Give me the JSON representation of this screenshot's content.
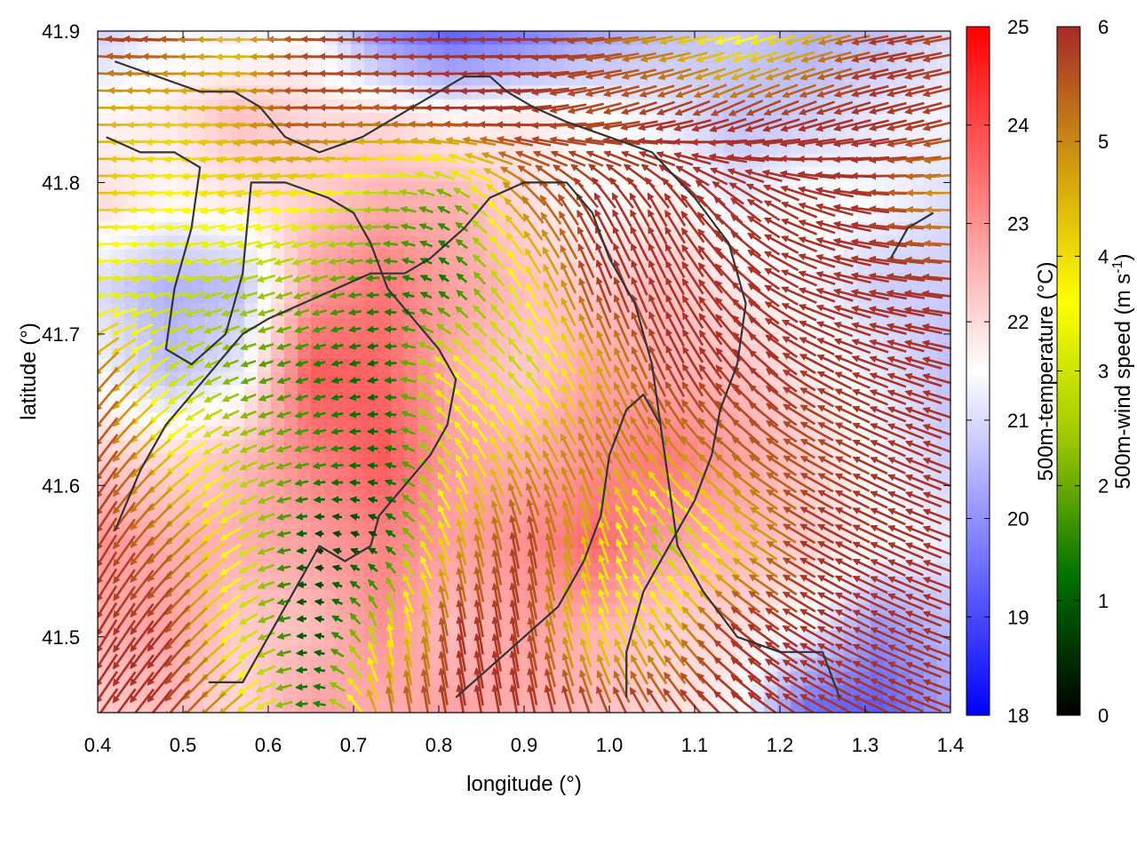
{
  "chart_data": {
    "type": "heatmap",
    "xlabel": "longitude (°)",
    "ylabel": "latitude (°)",
    "xlim": [
      0.4,
      1.4
    ],
    "ylim": [
      41.45,
      41.9
    ],
    "x_ticks": [
      "0.4",
      "0.5",
      "0.6",
      "0.7",
      "0.8",
      "0.9",
      "1.0",
      "1.1",
      "1.2",
      "1.3",
      "1.4"
    ],
    "y_ticks": [
      "41.5",
      "41.6",
      "41.7",
      "41.8",
      "41.9"
    ],
    "temperature_colorbar": {
      "label": "500m-temperature (°C)",
      "range": [
        18,
        25
      ],
      "ticks": [
        "18",
        "19",
        "20",
        "21",
        "22",
        "23",
        "24",
        "25"
      ],
      "colors": [
        "#0000ff",
        "#ffffff",
        "#ff0000"
      ]
    },
    "wind_colorbar": {
      "label": "500m-wind speed (m s",
      "label_sup": "-1",
      "label_end": ")",
      "range": [
        0,
        6
      ],
      "ticks": [
        "0",
        "1",
        "2",
        "3",
        "4",
        "5",
        "6"
      ],
      "colors": [
        "#000000",
        "#007000",
        "#9dc800",
        "#ffff00",
        "#d09a10",
        "#a52a2a"
      ]
    },
    "temperature_field": [
      [
        20.8,
        21.4,
        21.2,
        21.6,
        19.8,
        19.2,
        19.6,
        20.2,
        20.6,
        20.8,
        20.4,
        20.6,
        21.0
      ],
      [
        21.6,
        21.8,
        22.4,
        22.0,
        22.0,
        21.6,
        21.8,
        21.6,
        21.2,
        20.6,
        20.8,
        21.2,
        21.4
      ],
      [
        22.0,
        21.6,
        21.8,
        22.2,
        22.6,
        22.6,
        22.0,
        21.4,
        21.8,
        21.2,
        21.6,
        21.4,
        21.0
      ],
      [
        21.0,
        20.4,
        20.6,
        22.8,
        23.4,
        22.8,
        22.4,
        22.2,
        22.4,
        21.8,
        21.4,
        20.8,
        20.8
      ],
      [
        21.4,
        20.6,
        21.2,
        23.8,
        23.6,
        22.6,
        22.2,
        22.8,
        22.6,
        22.4,
        21.8,
        21.2,
        20.6
      ],
      [
        22.2,
        22.0,
        22.4,
        23.2,
        23.8,
        22.8,
        22.6,
        23.0,
        23.4,
        22.8,
        22.2,
        21.4,
        20.8
      ],
      [
        23.0,
        22.6,
        22.6,
        22.8,
        23.2,
        22.8,
        23.0,
        23.6,
        22.8,
        22.6,
        22.2,
        21.6,
        21.2
      ],
      [
        22.6,
        22.8,
        22.2,
        22.4,
        23.0,
        22.4,
        22.8,
        22.6,
        22.2,
        22.0,
        21.4,
        20.0,
        20.6
      ],
      [
        22.2,
        22.4,
        22.0,
        22.8,
        22.6,
        22.8,
        22.6,
        22.4,
        22.0,
        21.6,
        19.4,
        19.2,
        20.2
      ]
    ],
    "wind_field": [
      [
        5.9,
        5.8,
        4.2,
        5.6,
        5.9,
        5.9,
        5.9,
        5.7,
        4.6,
        3.2,
        4.4,
        5.9,
        5.6
      ],
      [
        4.6,
        4.2,
        4.6,
        5.8,
        5.4,
        5.9,
        5.9,
        5.6,
        5.9,
        5.9,
        5.9,
        5.9,
        5.8
      ],
      [
        4.4,
        3.6,
        4.0,
        3.6,
        2.4,
        1.6,
        5.2,
        5.9,
        5.9,
        5.9,
        5.9,
        5.9,
        4.6
      ],
      [
        3.2,
        3.0,
        2.6,
        2.2,
        1.4,
        1.2,
        3.6,
        5.9,
        5.9,
        5.9,
        5.9,
        5.9,
        5.9
      ],
      [
        5.4,
        3.0,
        2.0,
        1.4,
        1.0,
        3.8,
        2.6,
        4.4,
        5.9,
        5.9,
        5.9,
        5.9,
        5.9
      ],
      [
        5.8,
        4.2,
        2.6,
        1.8,
        1.0,
        3.2,
        4.6,
        5.2,
        4.8,
        5.4,
        5.6,
        5.9,
        5.9
      ],
      [
        5.9,
        5.2,
        3.4,
        0.6,
        0.8,
        4.4,
        5.9,
        4.2,
        2.0,
        4.0,
        5.9,
        5.9,
        5.9
      ],
      [
        5.9,
        5.9,
        3.2,
        0.6,
        2.8,
        5.9,
        5.8,
        3.6,
        4.4,
        5.9,
        5.9,
        5.9,
        5.9
      ],
      [
        5.9,
        5.9,
        4.6,
        1.0,
        5.4,
        5.9,
        5.9,
        5.9,
        5.9,
        5.9,
        5.9,
        5.9,
        5.9
      ]
    ],
    "wind_direction_deg": [
      [
        175,
        178,
        180,
        178,
        180,
        182,
        180,
        185,
        190,
        195,
        195,
        190,
        190
      ],
      [
        180,
        182,
        185,
        180,
        178,
        180,
        185,
        195,
        200,
        205,
        200,
        195,
        195
      ],
      [
        180,
        185,
        190,
        188,
        180,
        150,
        130,
        120,
        120,
        140,
        160,
        175,
        180
      ],
      [
        185,
        190,
        195,
        200,
        180,
        140,
        120,
        110,
        115,
        135,
        160,
        170,
        175
      ],
      [
        230,
        215,
        200,
        195,
        190,
        140,
        130,
        115,
        115,
        130,
        150,
        160,
        165
      ],
      [
        235,
        220,
        205,
        195,
        175,
        120,
        120,
        115,
        130,
        140,
        150,
        155,
        160
      ],
      [
        240,
        225,
        210,
        180,
        150,
        105,
        100,
        105,
        130,
        145,
        150,
        155,
        160
      ],
      [
        240,
        230,
        215,
        180,
        100,
        100,
        100,
        110,
        125,
        140,
        150,
        155,
        160
      ],
      [
        235,
        230,
        220,
        180,
        100,
        100,
        100,
        110,
        125,
        140,
        150,
        155,
        160
      ]
    ],
    "contour_lines": [
      [
        [
          0.42,
          41.88
        ],
        [
          0.47,
          41.87
        ],
        [
          0.52,
          41.86
        ],
        [
          0.56,
          41.86
        ],
        [
          0.59,
          41.85
        ],
        [
          0.62,
          41.83
        ],
        [
          0.66,
          41.82
        ],
        [
          0.71,
          41.83
        ],
        [
          0.74,
          41.84
        ],
        [
          0.77,
          41.85
        ],
        [
          0.8,
          41.86
        ],
        [
          0.83,
          41.87
        ],
        [
          0.86,
          41.87
        ],
        [
          0.88,
          41.86
        ],
        [
          0.91,
          41.85
        ],
        [
          0.95,
          41.84
        ],
        [
          1.0,
          41.83
        ],
        [
          1.05,
          41.82
        ],
        [
          1.1,
          41.79
        ],
        [
          1.14,
          41.76
        ],
        [
          1.16,
          41.72
        ],
        [
          1.15,
          41.68
        ],
        [
          1.13,
          41.65
        ],
        [
          1.12,
          41.62
        ],
        [
          1.1,
          41.59
        ],
        [
          1.07,
          41.56
        ],
        [
          1.04,
          41.53
        ],
        [
          1.02,
          41.49
        ],
        [
          1.02,
          41.46
        ]
      ],
      [
        [
          0.41,
          41.83
        ],
        [
          0.45,
          41.82
        ],
        [
          0.49,
          41.82
        ],
        [
          0.52,
          41.81
        ],
        [
          0.51,
          41.77
        ],
        [
          0.49,
          41.73
        ],
        [
          0.48,
          41.69
        ],
        [
          0.51,
          41.68
        ],
        [
          0.55,
          41.7
        ],
        [
          0.57,
          41.74
        ],
        [
          0.58,
          41.8
        ],
        [
          0.62,
          41.8
        ],
        [
          0.67,
          41.79
        ],
        [
          0.7,
          41.78
        ],
        [
          0.72,
          41.76
        ],
        [
          0.74,
          41.73
        ],
        [
          0.77,
          41.71
        ],
        [
          0.8,
          41.69
        ],
        [
          0.82,
          41.67
        ],
        [
          0.81,
          41.64
        ],
        [
          0.79,
          41.62
        ],
        [
          0.76,
          41.6
        ],
        [
          0.73,
          41.58
        ],
        [
          0.72,
          41.56
        ],
        [
          0.69,
          41.55
        ],
        [
          0.66,
          41.56
        ],
        [
          0.63,
          41.53
        ],
        [
          0.6,
          41.5
        ],
        [
          0.57,
          41.47
        ],
        [
          0.53,
          41.47
        ]
      ],
      [
        [
          0.42,
          41.57
        ],
        [
          0.45,
          41.61
        ],
        [
          0.48,
          41.64
        ],
        [
          0.51,
          41.66
        ],
        [
          0.54,
          41.68
        ],
        [
          0.57,
          41.7
        ],
        [
          0.6,
          41.71
        ],
        [
          0.64,
          41.72
        ],
        [
          0.68,
          41.73
        ],
        [
          0.72,
          41.74
        ],
        [
          0.76,
          41.74
        ],
        [
          0.79,
          41.75
        ],
        [
          0.83,
          41.77
        ],
        [
          0.86,
          41.79
        ],
        [
          0.9,
          41.8
        ],
        [
          0.95,
          41.8
        ],
        [
          0.98,
          41.78
        ],
        [
          1.0,
          41.75
        ],
        [
          1.03,
          41.72
        ],
        [
          1.05,
          41.68
        ],
        [
          1.06,
          41.64
        ],
        [
          1.07,
          41.6
        ],
        [
          1.08,
          41.56
        ],
        [
          1.11,
          41.53
        ],
        [
          1.15,
          41.5
        ],
        [
          1.2,
          41.49
        ],
        [
          1.25,
          41.49
        ],
        [
          1.27,
          41.46
        ]
      ],
      [
        [
          0.82,
          41.46
        ],
        [
          0.86,
          41.48
        ],
        [
          0.9,
          41.5
        ],
        [
          0.94,
          41.52
        ],
        [
          0.97,
          41.55
        ],
        [
          0.99,
          41.58
        ],
        [
          1.0,
          41.62
        ],
        [
          1.02,
          41.65
        ],
        [
          1.04,
          41.66
        ],
        [
          1.06,
          41.64
        ]
      ],
      [
        [
          1.33,
          41.75
        ],
        [
          1.35,
          41.77
        ],
        [
          1.38,
          41.78
        ]
      ]
    ]
  }
}
